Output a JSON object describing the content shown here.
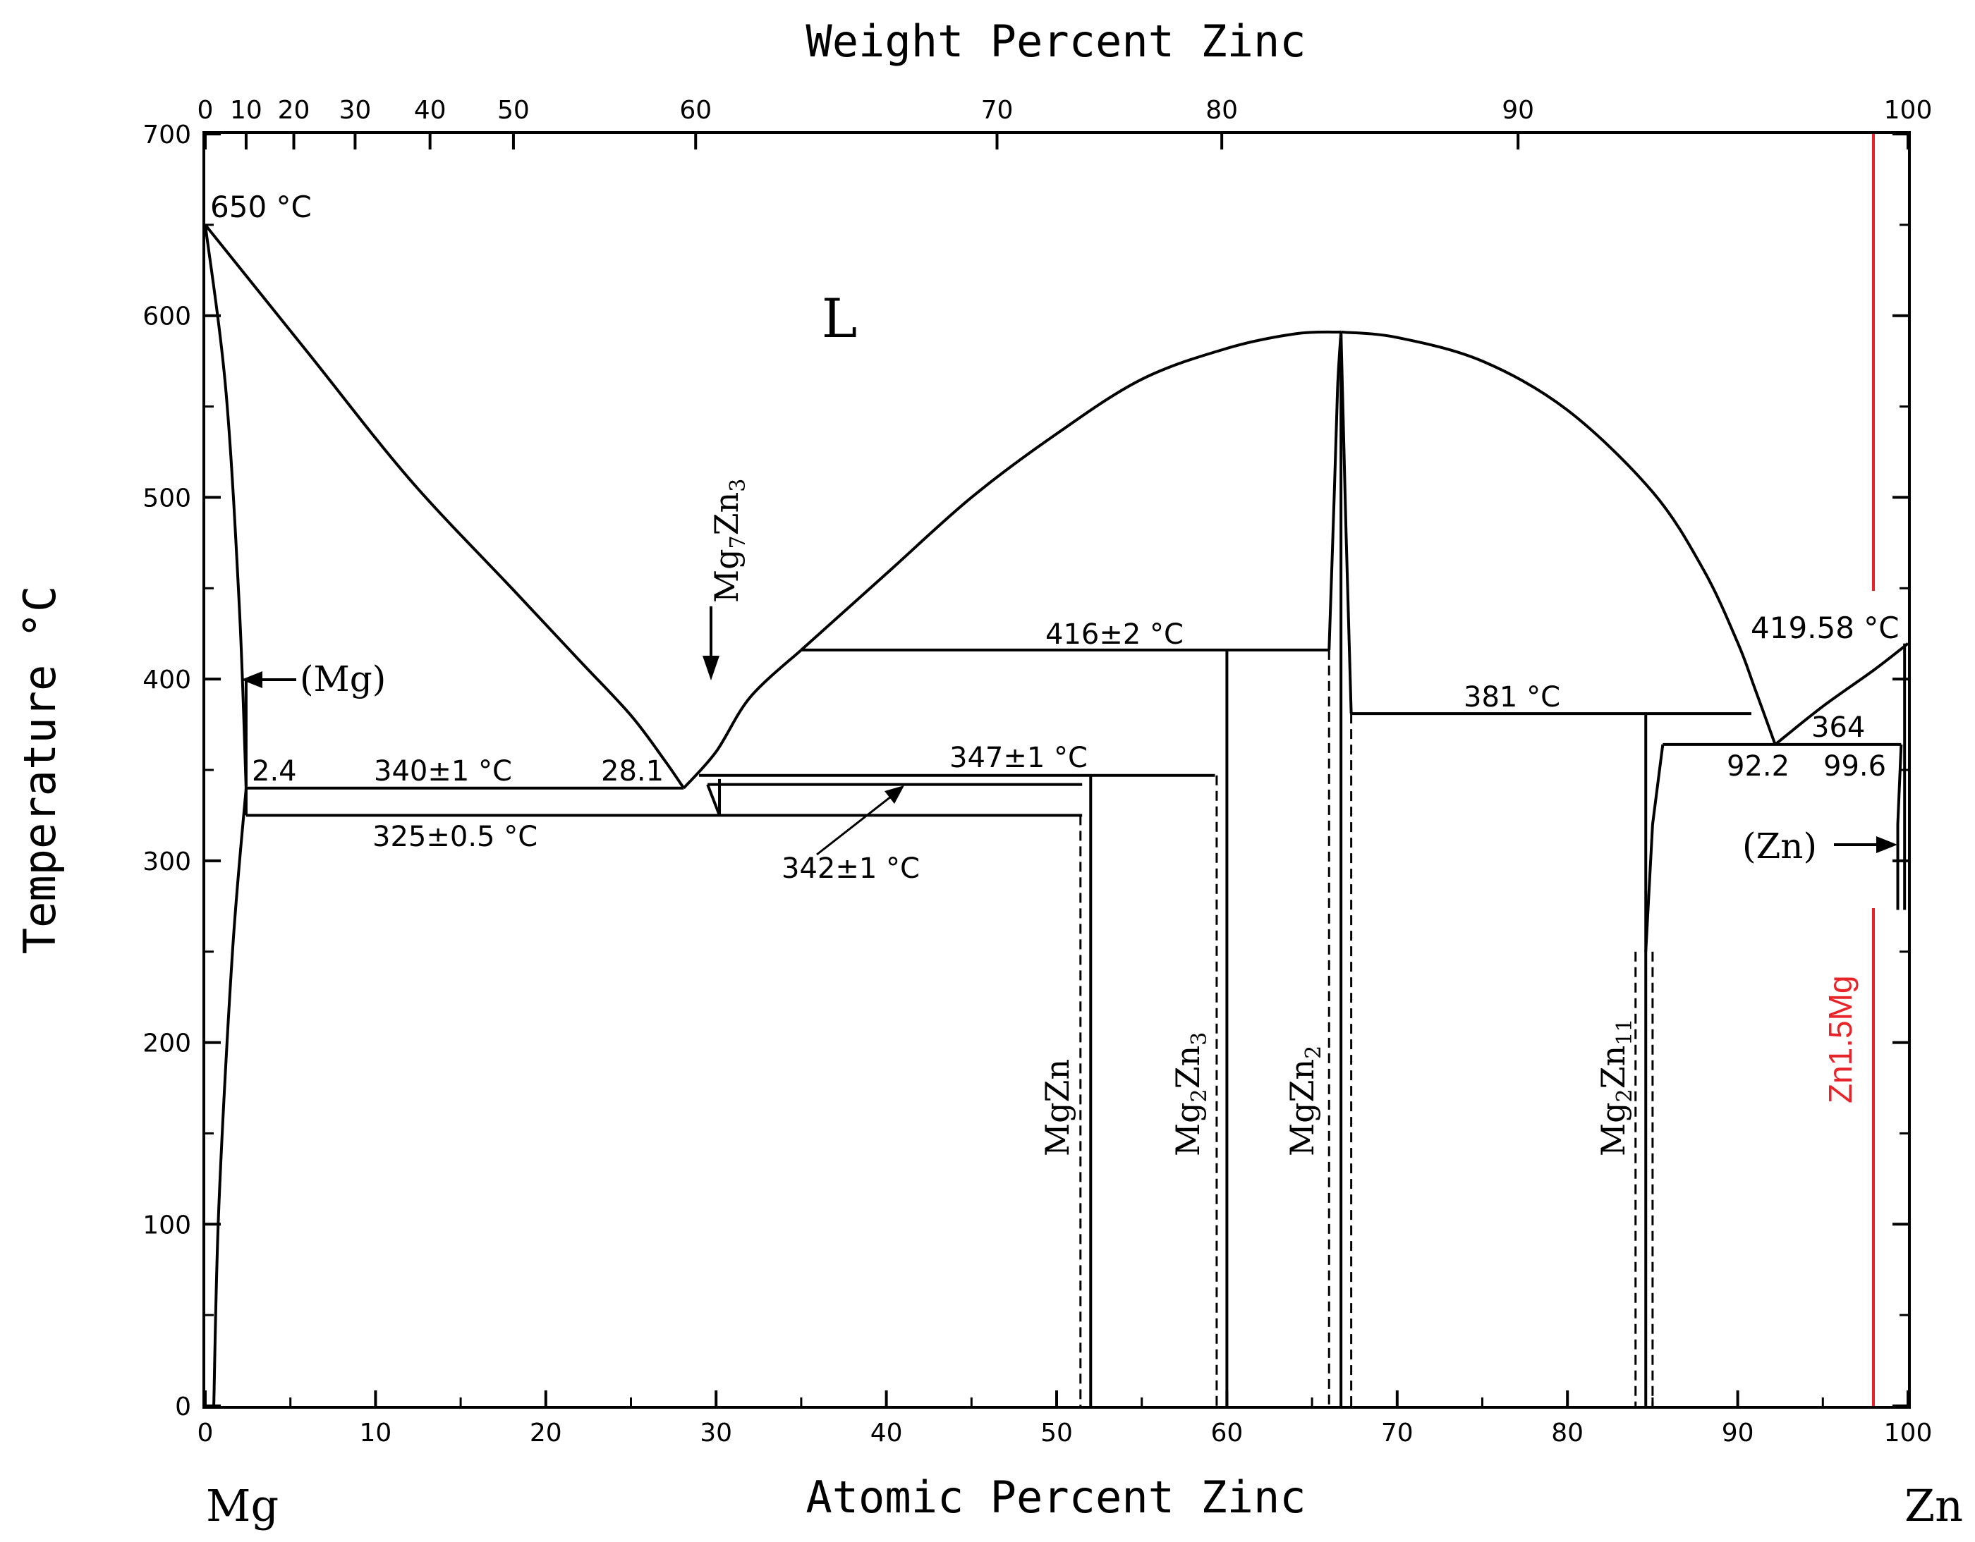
{
  "chart_data": {
    "type": "line",
    "title": "",
    "xlabel_bottom": "Atomic Percent Zinc",
    "xlabel_top": "Weight Percent Zinc",
    "ylabel": "Temperature °C",
    "xlim": [
      0,
      100
    ],
    "ylim": [
      0,
      700
    ],
    "x_ticks_bottom": [
      "0",
      "10",
      "20",
      "30",
      "40",
      "50",
      "60",
      "70",
      "80",
      "90",
      "100"
    ],
    "x_ticks_top": [
      {
        "label": "0",
        "at": 0
      },
      {
        "label": "10",
        "at": 2.4
      },
      {
        "label": "20",
        "at": 5.2
      },
      {
        "label": "30",
        "at": 8.8
      },
      {
        "label": "40",
        "at": 13.2
      },
      {
        "label": "50",
        "at": 18.1
      },
      {
        "label": "60",
        "at": 28.8
      },
      {
        "label": "70",
        "at": 46.5
      },
      {
        "label": "80",
        "at": 59.7
      },
      {
        "label": "90",
        "at": 77.1
      },
      {
        "label": "100",
        "at": 100
      }
    ],
    "y_ticks": [
      "0",
      "100",
      "200",
      "300",
      "400",
      "500",
      "600",
      "700"
    ],
    "left_element": "Mg",
    "right_element": "Zn",
    "liquid_label": "L",
    "series": [
      {
        "name": "liquidus-mg",
        "x": [
          0,
          6,
          12,
          18,
          22,
          25,
          27,
          28.1
        ],
        "y": [
          650,
          580,
          510,
          450,
          410,
          380,
          355,
          340
        ]
      },
      {
        "name": "solidus-mg",
        "x": [
          0,
          1.2,
          2.0,
          2.4
        ],
        "y": [
          650,
          560,
          440,
          340
        ]
      },
      {
        "name": "solvus-mg",
        "x": [
          2.4,
          1.6,
          0.8,
          0.5
        ],
        "y": [
          340,
          250,
          110,
          0
        ]
      },
      {
        "name": "liquidus-mg7zn3",
        "x": [
          28.1,
          30,
          32,
          35
        ],
        "y": [
          340,
          360,
          390,
          416
        ]
      },
      {
        "name": "liquidus-mgzn2",
        "x": [
          35,
          40,
          45,
          50,
          55,
          60,
          64,
          66.7
        ],
        "y": [
          416,
          458,
          500,
          535,
          565,
          582,
          590,
          591
        ]
      },
      {
        "name": "liquidus-mgzn2-right",
        "x": [
          66.7,
          70,
          75,
          80,
          85,
          88,
          90,
          91,
          92.2
        ],
        "y": [
          591,
          588,
          575,
          548,
          503,
          460,
          420,
          395,
          364
        ]
      },
      {
        "name": "liquidus-zn",
        "x": [
          92.2,
          95,
          98,
          100
        ],
        "y": [
          364,
          385,
          405,
          419.58
        ]
      },
      {
        "name": "mgzn2-left",
        "x": [
          66.0,
          66.3,
          66.5,
          66.7
        ],
        "y": [
          416,
          500,
          560,
          591
        ]
      },
      {
        "name": "mgzn2-right",
        "x": [
          66.7,
          67.0,
          67.3
        ],
        "y": [
          591,
          480,
          381
        ]
      },
      {
        "name": "mg2zn11-phase",
        "x": [
          84.6,
          85.0,
          85.6
        ],
        "y": [
          250,
          320,
          364
        ]
      },
      {
        "name": "zn-solvus",
        "x": [
          99.6,
          99.4,
          99.4
        ],
        "y": [
          364,
          320,
          273
        ]
      }
    ],
    "horizontal_lines": [
      {
        "label": "340±1 °C",
        "x1": 2.4,
        "x2": 28.1,
        "y": 340
      },
      {
        "label": "325±0.5 °C",
        "x1": 2.4,
        "x2": 51.5,
        "y": 325
      },
      {
        "label": "347±1 °C",
        "x1": 29,
        "x2": 59.3,
        "y": 347
      },
      {
        "label": "342±1 °C",
        "x1": 29.5,
        "x2": 51.5,
        "y": 342
      },
      {
        "label": "416±2 °C",
        "x1": 35,
        "x2": 66,
        "y": 416
      },
      {
        "label": "381 °C",
        "x1": 67.3,
        "x2": 90.8,
        "y": 381
      },
      {
        "label": "364",
        "x1": 85.6,
        "x2": 99.6,
        "y": 364
      }
    ],
    "phases": [
      {
        "name": "MgZn",
        "x": 52
      },
      {
        "name": "Mg2Zn3",
        "x": 60
      },
      {
        "name": "MgZn2",
        "x": 66.7
      },
      {
        "name": "Mg2Zn11",
        "x": 84.6
      }
    ],
    "annotations": {
      "t_mg_melt": "650 °C",
      "t_zn_melt": "419.58 °C",
      "c_mg_max": "2.4",
      "c_eut1": "28.1",
      "c_eut_zn": "92.2",
      "c_zn_max": "99.6",
      "t_eut_zn": "364",
      "mg_phase": "(Mg)",
      "zn_phase": "(Zn)",
      "mg7zn3": "Mg7Zn3",
      "t_340": "340±1 °C",
      "t_325": "325±0.5 °C",
      "t_347": "347±1 °C",
      "t_342": "342±1 °C",
      "t_416": "416±2 °C",
      "t_381": "381 °C"
    },
    "marker": {
      "label": "Zn1.5Mg",
      "x": 98.4,
      "color": "#e8242b"
    }
  }
}
